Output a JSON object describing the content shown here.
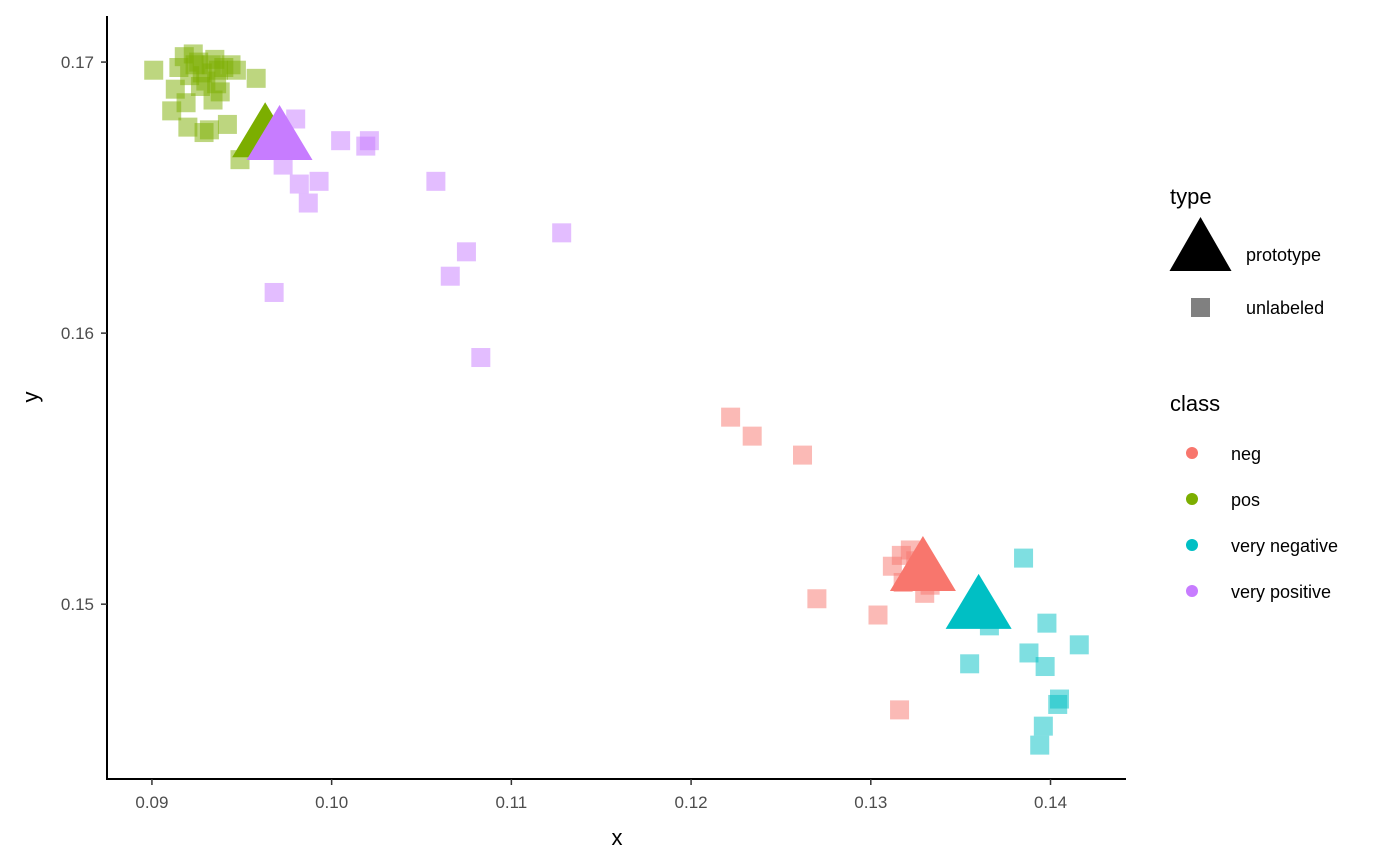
{
  "chart_data": {
    "type": "scatter",
    "xlabel": "x",
    "ylabel": "y",
    "xlim": [
      0.0875,
      0.1442
    ],
    "ylim": [
      0.14355,
      0.1717
    ],
    "xticks": [
      0.09,
      0.1,
      0.11,
      0.12,
      0.13,
      0.14
    ],
    "xtick_labels": [
      "0.09",
      "0.10",
      "0.11",
      "0.12",
      "0.13",
      "0.14"
    ],
    "yticks": [
      0.15,
      0.16,
      0.17
    ],
    "ytick_labels": [
      "0.15",
      "0.16",
      "0.17"
    ],
    "grid": false,
    "legend_position": "right",
    "colors": {
      "neg": "#F8766D",
      "pos": "#7CAE00",
      "very negative": "#00BFC4",
      "very positive": "#C77CFF"
    },
    "legends": {
      "type": {
        "title": "type",
        "entries": [
          {
            "label": "prototype",
            "shape": "triangle"
          },
          {
            "label": "unlabeled",
            "shape": "square"
          }
        ]
      },
      "class": {
        "title": "class",
        "entries": [
          {
            "label": "neg",
            "key": "neg"
          },
          {
            "label": "pos",
            "key": "pos"
          },
          {
            "label": "very negative",
            "key": "very negative"
          },
          {
            "label": "very positive",
            "key": "very positive"
          }
        ]
      }
    },
    "unlabeled": {
      "pos": [
        [
          0.0901,
          0.1697
        ],
        [
          0.0911,
          0.1682
        ],
        [
          0.0913,
          0.169
        ],
        [
          0.0915,
          0.1698
        ],
        [
          0.0918,
          0.1702
        ],
        [
          0.0919,
          0.1685
        ],
        [
          0.092,
          0.1676
        ],
        [
          0.0921,
          0.1695
        ],
        [
          0.0923,
          0.1703
        ],
        [
          0.0924,
          0.1699
        ],
        [
          0.0926,
          0.17
        ],
        [
          0.0927,
          0.1691
        ],
        [
          0.0928,
          0.1696
        ],
        [
          0.0929,
          0.1674
        ],
        [
          0.093,
          0.1693
        ],
        [
          0.0932,
          0.1675
        ],
        [
          0.0933,
          0.1699
        ],
        [
          0.0934,
          0.1686
        ],
        [
          0.0935,
          0.1701
        ],
        [
          0.0936,
          0.1692
        ],
        [
          0.0937,
          0.1697
        ],
        [
          0.0938,
          0.1689
        ],
        [
          0.094,
          0.1698
        ],
        [
          0.0942,
          0.1677
        ],
        [
          0.0944,
          0.1699
        ],
        [
          0.0947,
          0.1697
        ],
        [
          0.0949,
          0.1664
        ],
        [
          0.0958,
          0.1694
        ]
      ],
      "very positive": [
        [
          0.0968,
          0.1615
        ],
        [
          0.0973,
          0.1662
        ],
        [
          0.098,
          0.1679
        ],
        [
          0.0982,
          0.1655
        ],
        [
          0.0987,
          0.1648
        ],
        [
          0.0993,
          0.1656
        ],
        [
          0.1005,
          0.1671
        ],
        [
          0.1019,
          0.1669
        ],
        [
          0.1021,
          0.1671
        ],
        [
          0.1058,
          0.1656
        ],
        [
          0.1066,
          0.1621
        ],
        [
          0.1075,
          0.163
        ],
        [
          0.1083,
          0.1591
        ],
        [
          0.1128,
          0.1637
        ]
      ],
      "neg": [
        [
          0.1222,
          0.1569
        ],
        [
          0.1234,
          0.1562
        ],
        [
          0.1262,
          0.1555
        ],
        [
          0.127,
          0.1502
        ],
        [
          0.1304,
          0.1496
        ],
        [
          0.1312,
          0.1514
        ],
        [
          0.1317,
          0.1518
        ],
        [
          0.1318,
          0.1508
        ],
        [
          0.1322,
          0.152
        ],
        [
          0.1325,
          0.1516
        ],
        [
          0.133,
          0.1504
        ],
        [
          0.1333,
          0.1507
        ],
        [
          0.1316,
          0.1461
        ]
      ],
      "very negative": [
        [
          0.1355,
          0.1478
        ],
        [
          0.1366,
          0.1492
        ],
        [
          0.1385,
          0.1517
        ],
        [
          0.1388,
          0.1482
        ],
        [
          0.1394,
          0.1448
        ],
        [
          0.1396,
          0.1455
        ],
        [
          0.1397,
          0.1477
        ],
        [
          0.1398,
          0.1493
        ],
        [
          0.1404,
          0.1463
        ],
        [
          0.1405,
          0.1465
        ],
        [
          0.1416,
          0.1485
        ]
      ]
    },
    "prototypes": [
      {
        "class": "pos",
        "x": 0.0963,
        "y": 0.1674
      },
      {
        "class": "very positive",
        "x": 0.0971,
        "y": 0.1673
      },
      {
        "class": "neg",
        "x": 0.1329,
        "y": 0.1514
      },
      {
        "class": "very negative",
        "x": 0.136,
        "y": 0.15
      }
    ]
  }
}
